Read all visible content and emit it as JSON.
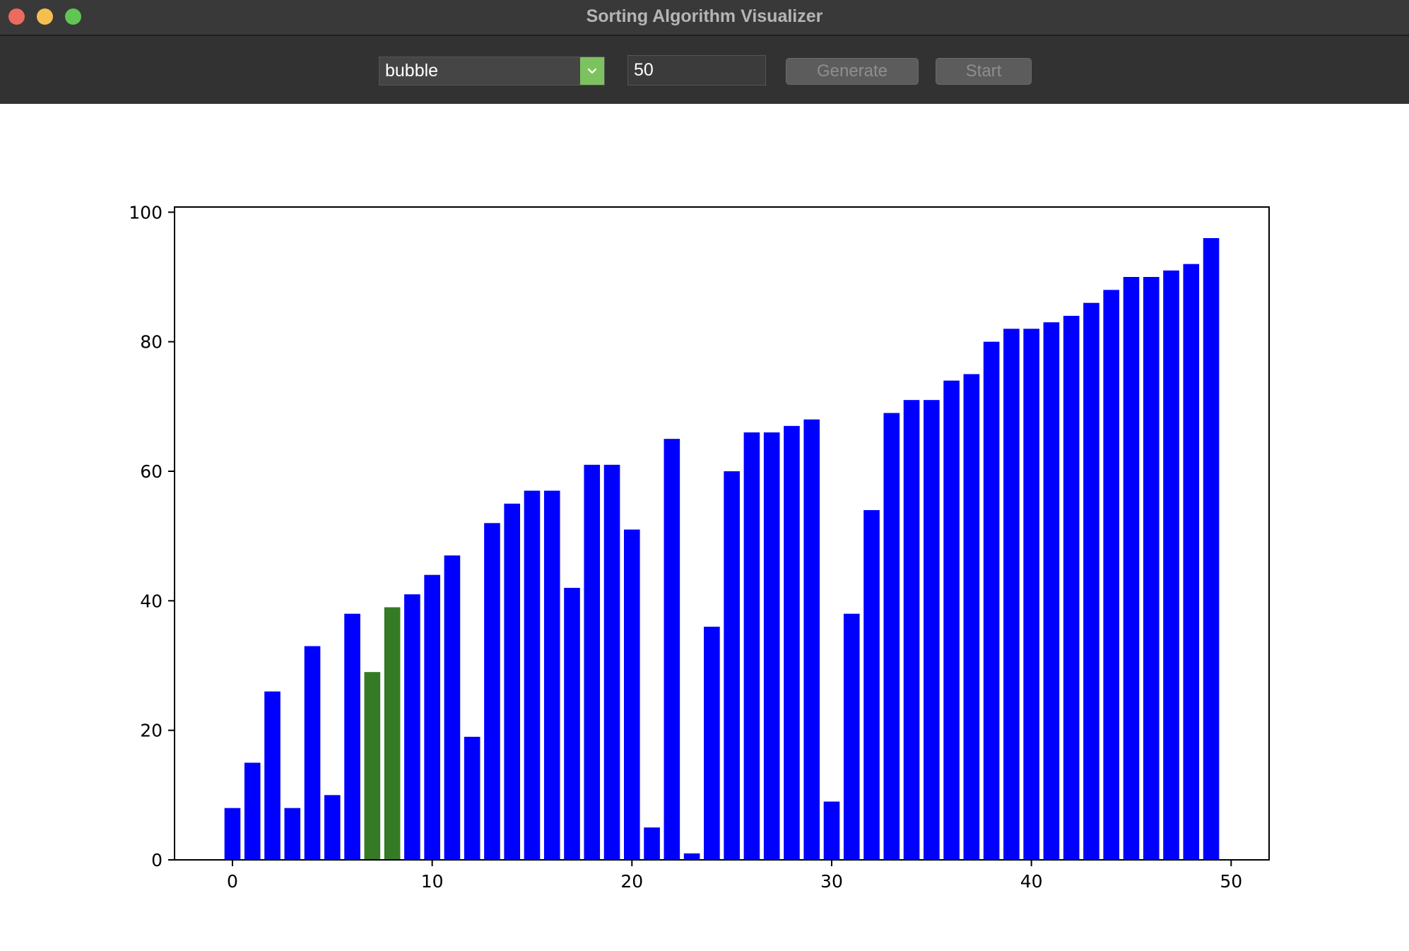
{
  "window": {
    "title": "Sorting Algorithm Visualizer"
  },
  "toolbar": {
    "algorithm_value": "bubble",
    "size_value": "50",
    "generate_label": "Generate",
    "start_label": "Start"
  },
  "colors": {
    "bar_default": "#0000ff",
    "bar_highlight": "#357a24",
    "select_arrow_bg": "#7cc35f"
  },
  "chart_data": {
    "type": "bar",
    "x": [
      0,
      1,
      2,
      3,
      4,
      5,
      6,
      7,
      8,
      9,
      10,
      11,
      12,
      13,
      14,
      15,
      16,
      17,
      18,
      19,
      20,
      21,
      22,
      23,
      24,
      25,
      26,
      27,
      28,
      29,
      30,
      31,
      32,
      33,
      34,
      35,
      36,
      37,
      38,
      39,
      40,
      41,
      42,
      43,
      44,
      45,
      46,
      47,
      48,
      49
    ],
    "values": [
      8,
      15,
      26,
      8,
      33,
      10,
      38,
      29,
      39,
      41,
      44,
      47,
      19,
      52,
      55,
      57,
      57,
      42,
      61,
      61,
      51,
      5,
      65,
      1,
      36,
      60,
      66,
      66,
      67,
      68,
      9,
      38,
      54,
      69,
      71,
      71,
      74,
      75,
      80,
      82,
      82,
      83,
      84,
      86,
      88,
      90,
      90,
      91,
      92,
      96
    ],
    "highlighted_indices": [
      7,
      8
    ],
    "xlim": [
      -2.9,
      51.9
    ],
    "ylim": [
      0,
      100.8
    ],
    "xticks": [
      0,
      10,
      20,
      30,
      40,
      50
    ],
    "yticks": [
      0,
      20,
      40,
      60,
      80,
      100
    ],
    "grid": false,
    "title": "",
    "xlabel": "",
    "ylabel": ""
  }
}
